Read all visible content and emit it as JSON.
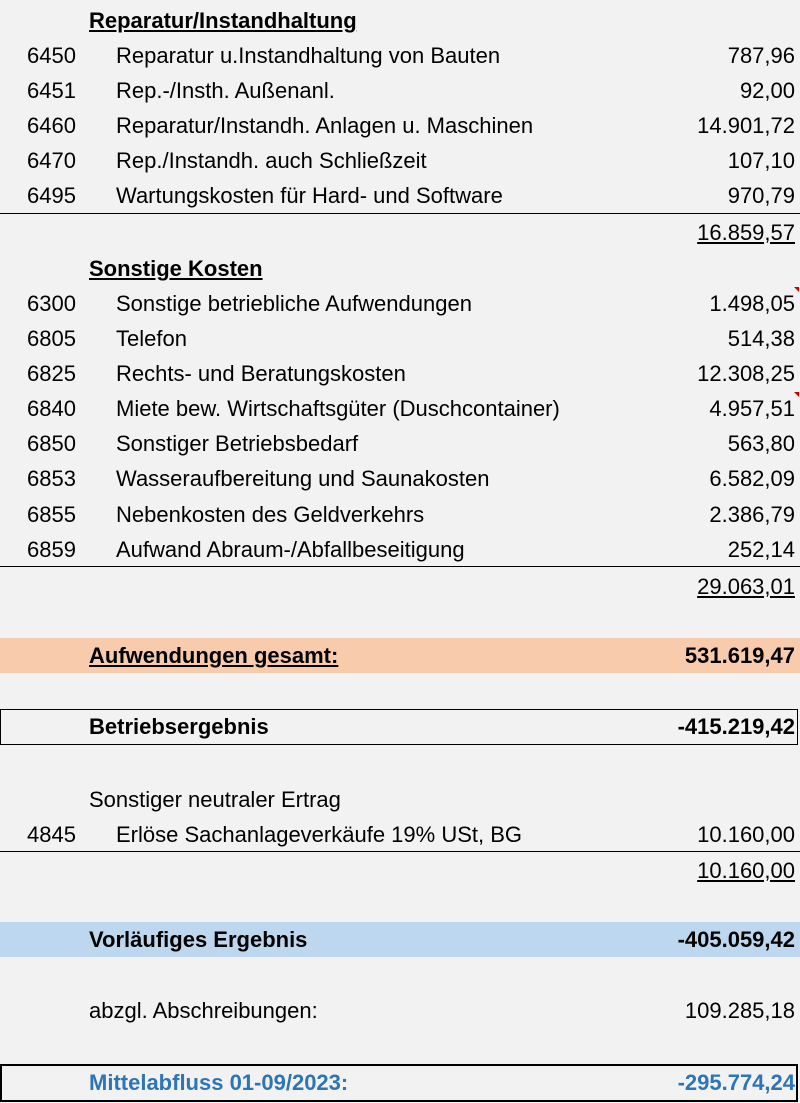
{
  "colors": {
    "background": "#f2f2f2",
    "expenses_total_band": "#f8cbad",
    "preliminary_result_band": "#bdd7ee",
    "cash_outflow_text": "#2e75b6"
  },
  "repair": {
    "heading": "Reparatur/Instandhaltung",
    "items": [
      {
        "account": "6450",
        "label": "Reparatur u.Instandhaltung von Bauten",
        "amount": "787,96"
      },
      {
        "account": "6451",
        "label": "Rep.-/Insth. Außenanl.",
        "amount": "92,00"
      },
      {
        "account": "6460",
        "label": "Reparatur/Instandh. Anlagen u. Maschinen",
        "amount": "14.901,72"
      },
      {
        "account": "6470",
        "label": "Rep./Instandh. auch Schließzeit",
        "amount": "107,10"
      },
      {
        "account": "6495",
        "label": "Wartungskosten für Hard- und Software",
        "amount": "970,79"
      }
    ],
    "subtotal": "16.859,57"
  },
  "other_costs": {
    "heading": "Sonstige Kosten",
    "items": [
      {
        "account": "6300",
        "label": "Sonstige betriebliche Aufwendungen",
        "amount": "1.498,05"
      },
      {
        "account": "6805",
        "label": "Telefon",
        "amount": "514,38"
      },
      {
        "account": "6825",
        "label": "Rechts- und Beratungskosten",
        "amount": "12.308,25"
      },
      {
        "account": "6840",
        "label": "Miete bew. Wirtschaftsgüter (Duschcontainer)",
        "amount": "4.957,51"
      },
      {
        "account": "6850",
        "label": "Sonstiger Betriebsbedarf",
        "amount": "563,80"
      },
      {
        "account": "6853",
        "label": "Wasseraufbereitung und Saunakosten",
        "amount": "6.582,09"
      },
      {
        "account": "6855",
        "label": "Nebenkosten des Geldverkehrs",
        "amount": "2.386,79"
      },
      {
        "account": "6859",
        "label": "Aufwand Abraum-/Abfallbeseitigung",
        "amount": "252,14"
      }
    ],
    "subtotal": "29.063,01"
  },
  "expenses_total": {
    "label": "Aufwendungen gesamt:",
    "amount": "531.619,47"
  },
  "operating_result": {
    "label": "Betriebsergebnis",
    "amount": "-415.219,42"
  },
  "neutral_income": {
    "heading": "Sonstiger neutraler Ertrag",
    "items": [
      {
        "account": "4845",
        "label": "Erlöse Sachanlageverkäufe 19% USt, BG",
        "amount": "10.160,00"
      }
    ],
    "subtotal": "10.160,00"
  },
  "preliminary_result": {
    "label": "Vorläufiges Ergebnis",
    "amount": "-405.059,42"
  },
  "depreciation": {
    "label": "abzgl. Abschreibungen:",
    "amount": "109.285,18"
  },
  "cash_outflow": {
    "label": "Mittelabfluss 01-09/2023:",
    "amount": "-295.774,24"
  }
}
